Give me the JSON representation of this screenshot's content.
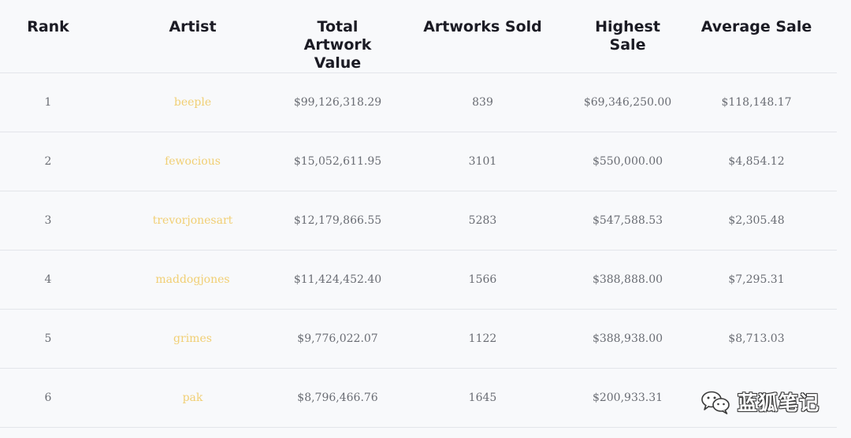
{
  "table": {
    "headers": {
      "rank": "Rank",
      "artist": "Artist",
      "total_value_line1": "Total Artwork",
      "total_value_line2": "Value",
      "artworks_sold": "Artworks Sold",
      "highest_sale": "Highest Sale",
      "average_sale": "Average Sale"
    },
    "rows": [
      {
        "rank": "1",
        "artist": "beeple",
        "total_value": "$99,126,318.29",
        "artworks_sold": "839",
        "highest_sale": "$69,346,250.00",
        "average_sale": "$118,148.17"
      },
      {
        "rank": "2",
        "artist": "fewocious",
        "total_value": "$15,052,611.95",
        "artworks_sold": "3101",
        "highest_sale": "$550,000.00",
        "average_sale": "$4,854.12"
      },
      {
        "rank": "3",
        "artist": "trevorjonesart",
        "total_value": "$12,179,866.55",
        "artworks_sold": "5283",
        "highest_sale": "$547,588.53",
        "average_sale": "$2,305.48"
      },
      {
        "rank": "4",
        "artist": "maddogjones",
        "total_value": "$11,424,452.40",
        "artworks_sold": "1566",
        "highest_sale": "$388,888.00",
        "average_sale": "$7,295.31"
      },
      {
        "rank": "5",
        "artist": "grimes",
        "total_value": "$9,776,022.07",
        "artworks_sold": "1122",
        "highest_sale": "$388,938.00",
        "average_sale": "$8,713.03"
      },
      {
        "rank": "6",
        "artist": "pak",
        "total_value": "$8,796,466.76",
        "artworks_sold": "1645",
        "highest_sale": "$200,933.31",
        "average_sale": ""
      }
    ]
  },
  "watermark": {
    "text": "蓝狐笔记",
    "icon": "wechat-icon"
  },
  "colors": {
    "background": "#f8f9fb",
    "header_text": "#1b1b24",
    "cell_text": "#6a6d74",
    "artist_link": "#f1cf74",
    "divider": "#e3e5ea"
  }
}
